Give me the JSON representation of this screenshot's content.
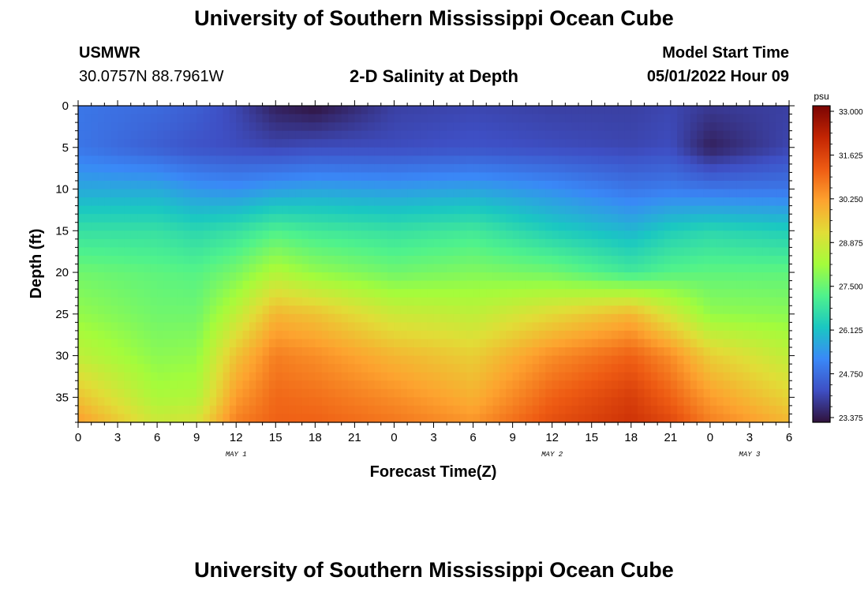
{
  "header": {
    "title": "University of Southern Mississippi Ocean Cube",
    "station": "USMWR",
    "coords": "30.0757N  88.7961W",
    "subtitle": "2-D Salinity at Depth",
    "model_label": "Model Start Time",
    "model_time": "05/01/2022 Hour 09"
  },
  "footer": {
    "title": "University of Southern Mississippi Ocean Cube"
  },
  "chart_data": {
    "type": "heatmap",
    "title": "2-D Salinity at Depth",
    "xlabel": "Forecast Time(Z)",
    "ylabel": "Depth (ft)",
    "x_tick_labels": [
      "0",
      "3",
      "6",
      "9",
      "12",
      "15",
      "18",
      "21",
      "0",
      "3",
      "6",
      "9",
      "12",
      "15",
      "18",
      "21",
      "0",
      "3",
      "6"
    ],
    "x_range_hours": [
      0,
      54
    ],
    "date_labels": [
      {
        "label": "MAY 1",
        "hour": 12
      },
      {
        "label": "MAY 2",
        "hour": 36
      },
      {
        "label": "MAY 3",
        "hour": 51
      }
    ],
    "y_ticks": [
      0,
      5,
      10,
      15,
      20,
      25,
      30,
      35
    ],
    "ylim": [
      0,
      38
    ],
    "y_inverted": true,
    "colorbar": {
      "unit": "psu",
      "min": 23.375,
      "max": 33.0,
      "tick_labels": [
        "33.000",
        "31.625",
        "30.250",
        "28.875",
        "27.500",
        "26.125",
        "24.750",
        "23.375"
      ],
      "colors": [
        "#30123b",
        "#3e4fc4",
        "#3a88f7",
        "#1ac7c2",
        "#4ff28c",
        "#a4fc3b",
        "#e1dd37",
        "#fda32f",
        "#ee5b13",
        "#c32503",
        "#7a0403"
      ]
    },
    "salinity_depth_profile_by_hour": {
      "depths_ft": [
        0,
        5,
        10,
        15,
        20,
        25,
        30,
        35,
        38
      ],
      "profiles": [
        {
          "hour": 0,
          "values": [
            25.0,
            25.0,
            25.8,
            26.8,
            27.6,
            28.0,
            28.6,
            29.6,
            30.2
          ]
        },
        {
          "hour": 6,
          "values": [
            24.8,
            24.6,
            25.8,
            26.8,
            27.4,
            27.6,
            27.9,
            28.3,
            28.8
          ]
        },
        {
          "hour": 9,
          "values": [
            24.6,
            24.4,
            25.5,
            26.6,
            27.3,
            27.6,
            28.0,
            28.4,
            29.0
          ]
        },
        {
          "hour": 12,
          "values": [
            24.2,
            24.3,
            25.4,
            26.8,
            27.7,
            28.6,
            29.6,
            30.2,
            30.6
          ]
        },
        {
          "hour": 15,
          "values": [
            23.6,
            24.2,
            25.6,
            27.2,
            28.4,
            29.8,
            30.6,
            30.9,
            31.0
          ]
        },
        {
          "hour": 18,
          "values": [
            23.4,
            24.3,
            25.7,
            27.0,
            28.0,
            29.6,
            30.4,
            30.8,
            31.0
          ]
        },
        {
          "hour": 24,
          "values": [
            24.1,
            24.3,
            25.6,
            26.8,
            27.6,
            28.8,
            29.8,
            30.4,
            30.7
          ]
        },
        {
          "hour": 30,
          "values": [
            24.2,
            24.4,
            25.7,
            27.0,
            27.8,
            28.6,
            29.4,
            29.9,
            30.3
          ]
        },
        {
          "hour": 36,
          "values": [
            24.1,
            24.3,
            25.4,
            26.4,
            27.6,
            29.2,
            30.4,
            31.0,
            31.3
          ]
        },
        {
          "hour": 42,
          "values": [
            24.1,
            24.2,
            25.0,
            26.0,
            27.0,
            29.8,
            31.0,
            31.6,
            31.8
          ]
        },
        {
          "hour": 45,
          "values": [
            24.2,
            24.3,
            25.1,
            26.4,
            27.3,
            28.9,
            30.4,
            31.0,
            31.4
          ]
        },
        {
          "hour": 48,
          "values": [
            24.0,
            23.6,
            25.0,
            26.6,
            27.4,
            28.0,
            29.4,
            30.2,
            30.6
          ]
        },
        {
          "hour": 54,
          "values": [
            24.1,
            24.2,
            25.0,
            26.4,
            27.4,
            27.9,
            28.6,
            29.3,
            29.8
          ]
        }
      ]
    }
  }
}
